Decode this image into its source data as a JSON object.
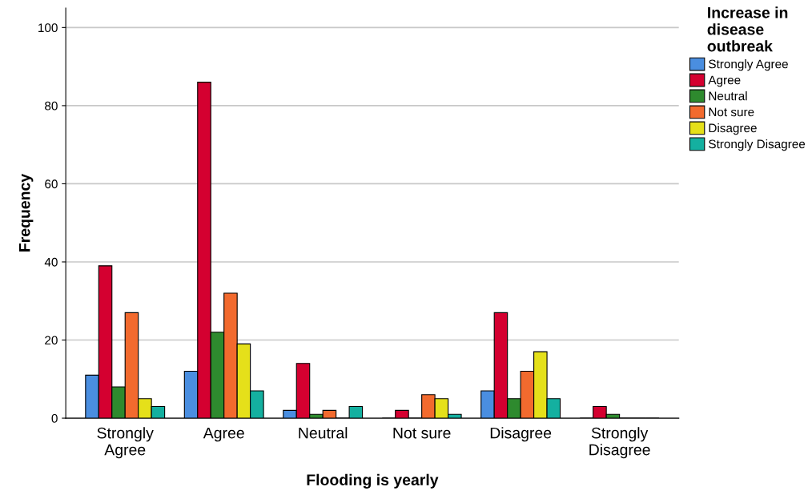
{
  "chart_data": {
    "type": "bar",
    "xlabel": "Flooding is yearly",
    "ylabel": "Frequency",
    "legend_title": "Increase in\ndisease\noutbreak",
    "categories": [
      "Strongly\nAgree",
      "Agree",
      "Neutral",
      "Not sure",
      "Disagree",
      "Strongly\nDisagree"
    ],
    "series": [
      {
        "name": "Strongly Agree",
        "color": "#4a8ee0",
        "values": [
          11,
          12,
          2,
          0,
          7,
          0
        ]
      },
      {
        "name": "Agree",
        "color": "#d40030",
        "values": [
          39,
          86,
          14,
          2,
          27,
          3
        ]
      },
      {
        "name": "Neutral",
        "color": "#2e8a2e",
        "values": [
          8,
          22,
          1,
          0,
          5,
          1
        ]
      },
      {
        "name": "Not sure",
        "color": "#f26a2e",
        "values": [
          27,
          32,
          2,
          6,
          12,
          0
        ]
      },
      {
        "name": "Disagree",
        "color": "#e5e01a",
        "values": [
          5,
          19,
          0,
          5,
          17,
          0
        ]
      },
      {
        "name": "Strongly Disagree",
        "color": "#14b0a0",
        "values": [
          3,
          7,
          3,
          1,
          5,
          0
        ]
      }
    ],
    "ylim": [
      0,
      105
    ],
    "yticks": [
      0,
      20,
      40,
      60,
      80,
      100
    ],
    "grid": "y",
    "legend": "right"
  }
}
